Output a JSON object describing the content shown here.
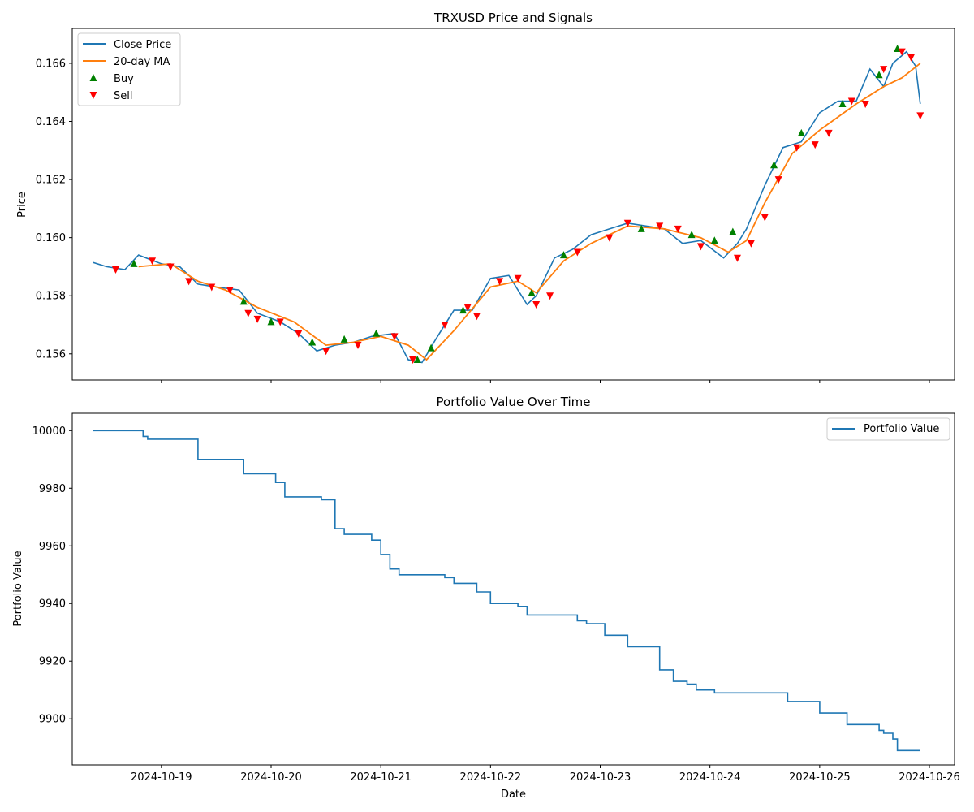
{
  "chart_data": [
    {
      "type": "line",
      "title": "TRXUSD Price and Signals",
      "xlabel": "",
      "ylabel": "Price",
      "ylim": [
        0.1551,
        0.1672
      ],
      "xlim": [
        "2024-10-18 04:30",
        "2024-10-26 05:30"
      ],
      "yticks": [
        "0.156",
        "0.158",
        "0.160",
        "0.162",
        "0.164",
        "0.166"
      ],
      "xticks_labels_shown": false,
      "legend_position": "upper left",
      "legend": [
        "Close Price",
        "20-day MA",
        "Buy",
        "Sell"
      ],
      "colors": {
        "close": "#1f77b4",
        "ma": "#ff7f0e",
        "buy": "#008000",
        "sell": "#ff0000"
      },
      "series": [
        {
          "name": "Close Price",
          "x": [
            "2024-10-18 09:00",
            "2024-10-18 12:00",
            "2024-10-18 16:00",
            "2024-10-18 19:00",
            "2024-10-19 00:00",
            "2024-10-19 04:00",
            "2024-10-19 08:00",
            "2024-10-19 12:00",
            "2024-10-19 17:00",
            "2024-10-19 21:00",
            "2024-10-20 02:00",
            "2024-10-20 06:00",
            "2024-10-20 10:00",
            "2024-10-20 14:00",
            "2024-10-20 18:00",
            "2024-10-20 22:00",
            "2024-10-21 03:00",
            "2024-10-21 06:00",
            "2024-10-21 09:00",
            "2024-10-21 12:00",
            "2024-10-21 16:00",
            "2024-10-21 20:00",
            "2024-10-22 00:00",
            "2024-10-22 04:00",
            "2024-10-22 08:00",
            "2024-10-22 10:00",
            "2024-10-22 14:00",
            "2024-10-22 18:00",
            "2024-10-22 22:00",
            "2024-10-23 02:00",
            "2024-10-23 06:00",
            "2024-10-23 10:00",
            "2024-10-23 14:00",
            "2024-10-23 18:00",
            "2024-10-23 22:00",
            "2024-10-24 03:00",
            "2024-10-24 06:00",
            "2024-10-24 08:00",
            "2024-10-24 12:00",
            "2024-10-24 16:00",
            "2024-10-24 20:00",
            "2024-10-25 00:00",
            "2024-10-25 04:00",
            "2024-10-25 08:00",
            "2024-10-25 11:00",
            "2024-10-25 14:00",
            "2024-10-25 16:00",
            "2024-10-25 19:00",
            "2024-10-25 21:00",
            "2024-10-25 22:00"
          ],
          "y": [
            0.15915,
            0.159,
            0.1589,
            0.1594,
            0.1591,
            0.159,
            0.1584,
            0.1583,
            0.1582,
            0.1574,
            0.1571,
            0.1567,
            0.1561,
            0.1563,
            0.1564,
            0.1566,
            0.1567,
            0.1558,
            0.1557,
            0.1565,
            0.1575,
            0.1575,
            0.1586,
            0.1587,
            0.1577,
            0.158,
            0.1593,
            0.1596,
            0.1601,
            0.1603,
            0.1605,
            0.1604,
            0.1603,
            0.1598,
            0.1599,
            0.1593,
            0.1598,
            0.1603,
            0.1618,
            0.1631,
            0.1633,
            0.1643,
            0.1647,
            0.1647,
            0.1658,
            0.1652,
            0.166,
            0.1664,
            0.1659,
            0.1646
          ]
        },
        {
          "name": "20-day MA",
          "x": [
            "2024-10-18 19:00",
            "2024-10-19 02:00",
            "2024-10-19 08:00",
            "2024-10-19 14:00",
            "2024-10-19 21:00",
            "2024-10-20 05:00",
            "2024-10-20 12:00",
            "2024-10-20 18:00",
            "2024-10-21 00:00",
            "2024-10-21 06:00",
            "2024-10-21 10:00",
            "2024-10-21 16:00",
            "2024-10-22 00:00",
            "2024-10-22 06:00",
            "2024-10-22 10:00",
            "2024-10-22 16:00",
            "2024-10-22 22:00",
            "2024-10-23 06:00",
            "2024-10-23 14:00",
            "2024-10-23 22:00",
            "2024-10-24 04:00",
            "2024-10-24 08:00",
            "2024-10-24 12:00",
            "2024-10-24 18:00",
            "2024-10-25 00:00",
            "2024-10-25 08:00",
            "2024-10-25 14:00",
            "2024-10-25 18:00",
            "2024-10-25 22:00"
          ],
          "y": [
            0.159,
            0.1591,
            0.1585,
            0.1582,
            0.1576,
            0.1571,
            0.1563,
            0.1564,
            0.1566,
            0.1563,
            0.1558,
            0.1568,
            0.1583,
            0.1585,
            0.1581,
            0.1592,
            0.1598,
            0.1604,
            0.1603,
            0.16,
            0.1595,
            0.1599,
            0.1612,
            0.1629,
            0.1637,
            0.1646,
            0.1652,
            0.1655,
            0.166
          ]
        }
      ],
      "signals": {
        "buy": {
          "name": "Buy",
          "x": [
            "2024-10-18 18:00",
            "2024-10-19 18:00",
            "2024-10-20 00:00",
            "2024-10-20 09:00",
            "2024-10-20 16:00",
            "2024-10-20 23:00",
            "2024-10-21 08:00",
            "2024-10-21 11:00",
            "2024-10-21 18:00",
            "2024-10-22 09:00",
            "2024-10-22 16:00",
            "2024-10-23 09:00",
            "2024-10-23 20:00",
            "2024-10-24 01:00",
            "2024-10-24 05:00",
            "2024-10-24 14:00",
            "2024-10-24 20:00",
            "2024-10-25 05:00",
            "2024-10-25 13:00",
            "2024-10-25 17:00"
          ],
          "y": [
            0.1591,
            0.1578,
            0.1571,
            0.1564,
            0.1565,
            0.1567,
            0.1558,
            0.1562,
            0.1575,
            0.1581,
            0.1594,
            0.1603,
            0.1601,
            0.1599,
            0.1602,
            0.1625,
            0.1636,
            0.1646,
            0.1656,
            0.1665
          ]
        },
        "sell": {
          "name": "Sell",
          "x": [
            "2024-10-18 14:00",
            "2024-10-18 22:00",
            "2024-10-19 02:00",
            "2024-10-19 06:00",
            "2024-10-19 11:00",
            "2024-10-19 15:00",
            "2024-10-19 19:00",
            "2024-10-19 21:00",
            "2024-10-20 02:00",
            "2024-10-20 06:00",
            "2024-10-20 12:00",
            "2024-10-20 19:00",
            "2024-10-21 03:00",
            "2024-10-21 07:00",
            "2024-10-21 14:00",
            "2024-10-21 19:00",
            "2024-10-21 21:00",
            "2024-10-22 02:00",
            "2024-10-22 06:00",
            "2024-10-22 10:00",
            "2024-10-22 13:00",
            "2024-10-22 19:00",
            "2024-10-23 02:00",
            "2024-10-23 06:00",
            "2024-10-23 13:00",
            "2024-10-23 17:00",
            "2024-10-23 22:00",
            "2024-10-24 06:00",
            "2024-10-24 09:00",
            "2024-10-24 12:00",
            "2024-10-24 15:00",
            "2024-10-24 19:00",
            "2024-10-24 23:00",
            "2024-10-25 02:00",
            "2024-10-25 07:00",
            "2024-10-25 10:00",
            "2024-10-25 14:00",
            "2024-10-25 18:00",
            "2024-10-25 20:00",
            "2024-10-25 22:00"
          ],
          "y": [
            0.1589,
            0.1592,
            0.159,
            0.1585,
            0.1583,
            0.1582,
            0.1574,
            0.1572,
            0.1571,
            0.1567,
            0.1561,
            0.1563,
            0.1566,
            0.1558,
            0.157,
            0.1576,
            0.1573,
            0.1585,
            0.1586,
            0.1577,
            0.158,
            0.1595,
            0.16,
            0.1605,
            0.1604,
            0.1603,
            0.1597,
            0.1593,
            0.1598,
            0.1607,
            0.162,
            0.1631,
            0.1632,
            0.1636,
            0.1647,
            0.1646,
            0.1658,
            0.1664,
            0.1662,
            0.1642
          ]
        }
      }
    },
    {
      "type": "line",
      "title": "Portfolio Value Over Time",
      "xlabel": "Date",
      "ylabel": "Portfolio Value",
      "ylim": [
        9884,
        10006
      ],
      "xlim": [
        "2024-10-18 04:30",
        "2024-10-26 05:30"
      ],
      "yticks": [
        "9900",
        "9920",
        "9940",
        "9960",
        "9980",
        "10000"
      ],
      "xticks": [
        "2024-10-19",
        "2024-10-20",
        "2024-10-21",
        "2024-10-22",
        "2024-10-23",
        "2024-10-24",
        "2024-10-25",
        "2024-10-26"
      ],
      "legend_position": "upper right",
      "legend": [
        "Portfolio Value"
      ],
      "series": [
        {
          "name": "Portfolio Value",
          "color": "#1f77b4",
          "x": [
            "2024-10-18 09:00",
            "2024-10-18 19:00",
            "2024-10-18 20:00",
            "2024-10-18 21:00",
            "2024-10-19 07:00",
            "2024-10-19 08:00",
            "2024-10-19 17:00",
            "2024-10-19 18:00",
            "2024-10-20 00:00",
            "2024-10-20 01:00",
            "2024-10-20 03:00",
            "2024-10-20 10:00",
            "2024-10-20 11:00",
            "2024-10-20 14:00",
            "2024-10-20 16:00",
            "2024-10-20 22:00",
            "2024-10-21 00:00",
            "2024-10-21 02:00",
            "2024-10-21 04:00",
            "2024-10-21 10:00",
            "2024-10-21 14:00",
            "2024-10-21 16:00",
            "2024-10-21 20:00",
            "2024-10-21 21:00",
            "2024-10-22 00:00",
            "2024-10-22 01:00",
            "2024-10-22 06:00",
            "2024-10-22 08:00",
            "2024-10-22 14:00",
            "2024-10-22 19:00",
            "2024-10-22 21:00",
            "2024-10-23 00:00",
            "2024-10-23 01:00",
            "2024-10-23 06:00",
            "2024-10-23 08:00",
            "2024-10-23 13:00",
            "2024-10-23 15:00",
            "2024-10-23 16:00",
            "2024-10-23 19:00",
            "2024-10-23 21:00",
            "2024-10-24 00:00",
            "2024-10-24 01:00",
            "2024-10-24 06:00",
            "2024-10-24 16:00",
            "2024-10-24 17:00",
            "2024-10-24 22:00",
            "2024-10-25 00:00",
            "2024-10-25 04:00",
            "2024-10-25 06:00",
            "2024-10-25 13:00",
            "2024-10-25 14:00",
            "2024-10-25 16:00",
            "2024-10-25 17:00",
            "2024-10-25 22:00"
          ],
          "y": [
            10000,
            10000,
            9998,
            9997,
            9997,
            9990,
            9990,
            9985,
            9985,
            9982,
            9977,
            9977,
            9976,
            9966,
            9964,
            9962,
            9957,
            9952,
            9950,
            9950,
            9949,
            9947,
            9947,
            9944,
            9940,
            9940,
            9939,
            9936,
            9936,
            9934,
            9933,
            9933,
            9929,
            9925,
            9925,
            9917,
            9917,
            9913,
            9912,
            9910,
            9910,
            9909,
            9909,
            9909,
            9906,
            9906,
            9902,
            9902,
            9898,
            9896,
            9895,
            9893,
            9889,
            9889
          ]
        }
      ]
    }
  ]
}
